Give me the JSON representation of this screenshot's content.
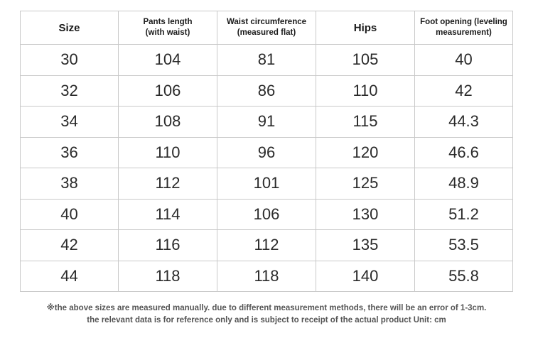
{
  "table": {
    "headers": [
      "Size",
      "Pants length\n(with waist)",
      "Waist circumference\n(measured flat)",
      "Hips",
      "Foot opening (leveling\nmeasurement)"
    ],
    "rows": [
      [
        "30",
        "104",
        "81",
        "105",
        "40"
      ],
      [
        "32",
        "106",
        "86",
        "110",
        "42"
      ],
      [
        "34",
        "108",
        "91",
        "115",
        "44.3"
      ],
      [
        "36",
        "110",
        "96",
        "120",
        "46.6"
      ],
      [
        "38",
        "112",
        "101",
        "125",
        "48.9"
      ],
      [
        "40",
        "114",
        "106",
        "130",
        "51.2"
      ],
      [
        "42",
        "116",
        "112",
        "135",
        "53.5"
      ],
      [
        "44",
        "118",
        "118",
        "140",
        "55.8"
      ]
    ]
  },
  "note": {
    "line1": "※the above sizes are measured manually. due to different measurement methods, there will be an error of 1-3cm.",
    "line2": "the relevant data is for reference only and is subject to receipt of the actual product Unit: cm"
  }
}
